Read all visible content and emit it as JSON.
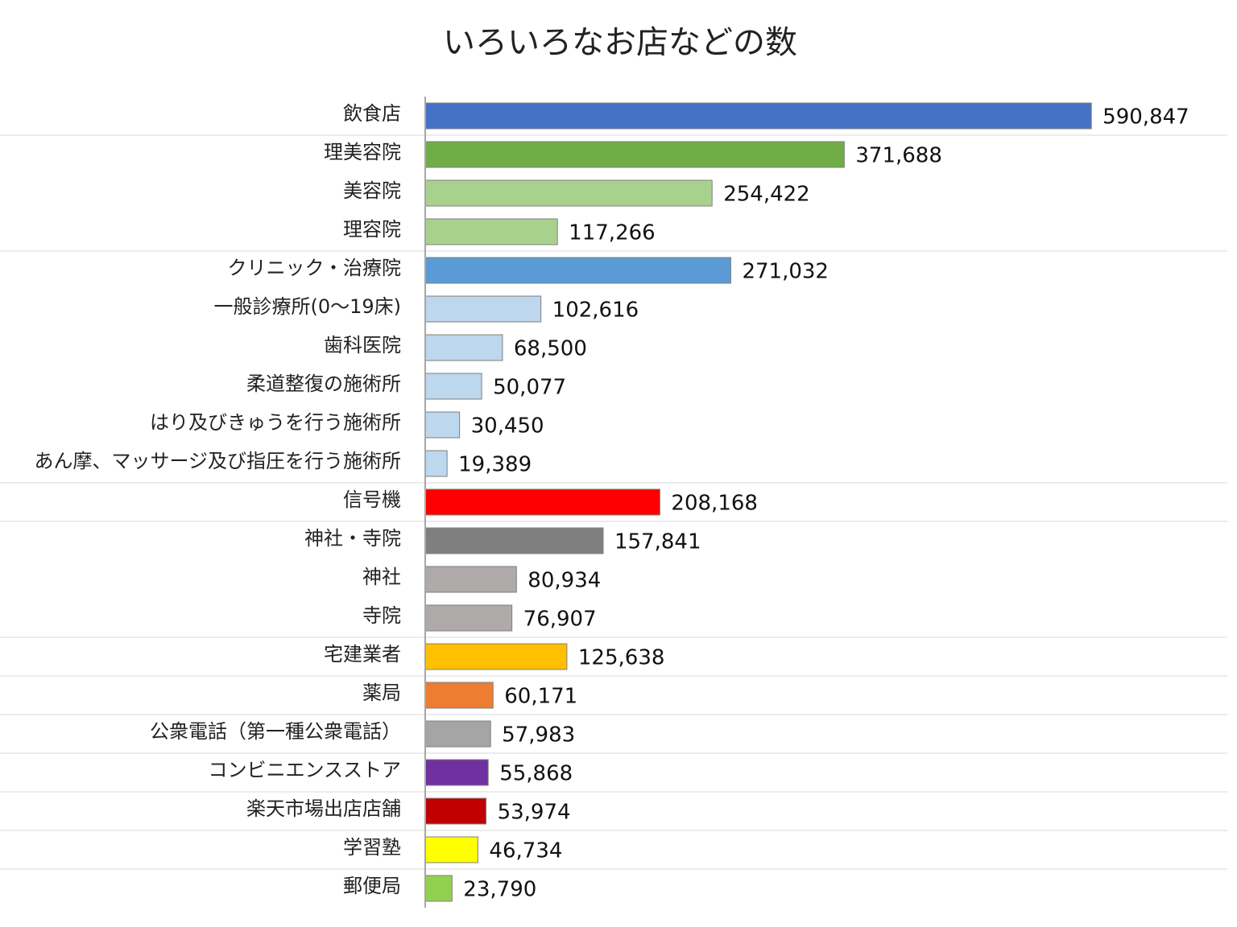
{
  "chart_data": {
    "type": "bar",
    "orientation": "horizontal",
    "title": "いろいろなお店などの数",
    "xlabel": "",
    "ylabel": "",
    "xlim": [
      0,
      600000
    ],
    "grid": false,
    "legend": "none",
    "categories": [
      "飲食店",
      "理美容院",
      "美容院",
      "理容院",
      "クリニック・治療院",
      "一般診療所(0～19床)",
      "歯科医院",
      "柔道整復の施術所",
      "はり及びきゅうを行う施術所",
      "あん摩、マッサージ及び指圧を行う施術所",
      "信号機",
      "神社・寺院",
      "神社",
      "寺院",
      "宅建業者",
      "薬局",
      "公衆電話（第一種公衆電話）",
      "コンビニエンスストア",
      "楽天市場出店店舗",
      "学習塾",
      "郵便局"
    ],
    "values": [
      590847,
      371688,
      254422,
      117266,
      271032,
      102616,
      68500,
      50077,
      30450,
      19389,
      208168,
      157841,
      80934,
      76907,
      125638,
      60171,
      57983,
      55868,
      53974,
      46734,
      23790
    ],
    "value_labels": [
      "590,847",
      "371,688",
      "254,422",
      "117,266",
      "271,032",
      "102,616",
      "68,500",
      "50,077",
      "30,450",
      "19,389",
      "208,168",
      "157,841",
      "80,934",
      "76,907",
      "125,638",
      "60,171",
      "57,983",
      "55,868",
      "53,974",
      "46,734",
      "23,790"
    ],
    "colors": [
      "#4472c4",
      "#70ad47",
      "#a9d18e",
      "#a9d18e",
      "#5b9bd5",
      "#bdd7ee",
      "#bdd7ee",
      "#bdd7ee",
      "#bdd7ee",
      "#bdd7ee",
      "#ff0000",
      "#7f7f7f",
      "#aeaaaa",
      "#aeaaaa",
      "#ffc000",
      "#ed7d31",
      "#a5a5a5",
      "#7030a0",
      "#c00000",
      "#ffff00",
      "#92d050"
    ],
    "group_separators_after": [
      0,
      3,
      9,
      10,
      13,
      14,
      15,
      16,
      17,
      18,
      19
    ]
  }
}
